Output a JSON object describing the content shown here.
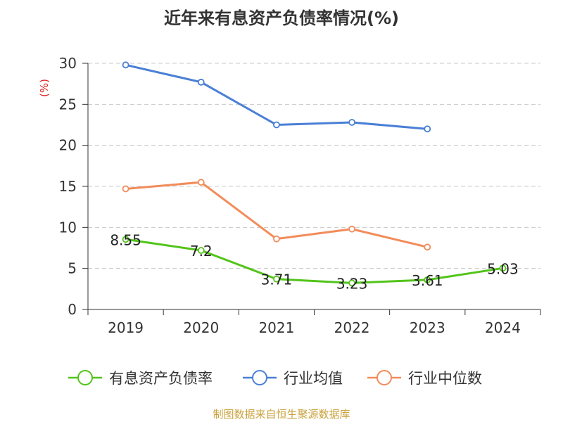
{
  "title": "近年来有息资产负债率情况(%)",
  "footer": "制图数据来自恒生聚源数据库",
  "chart_data": {
    "type": "line",
    "categories": [
      "2019",
      "2020",
      "2021",
      "2022",
      "2023",
      "2024"
    ],
    "ylabel": "(%)",
    "ylim": [
      0,
      30
    ],
    "yticks": [
      0,
      5,
      10,
      15,
      20,
      25,
      30
    ],
    "grid": true,
    "legend_position": "bottom",
    "series": [
      {
        "name": "有息资产负债率",
        "color": "#52c41a",
        "values": [
          8.55,
          7.2,
          3.71,
          3.23,
          3.61,
          5.03
        ],
        "labels": [
          "8.55",
          "7.2",
          "3.71",
          "3.23",
          "3.61",
          "5.03"
        ]
      },
      {
        "name": "行业均值",
        "color": "#4a7fd6",
        "values": [
          29.8,
          27.7,
          22.5,
          22.8,
          22.0,
          null
        ]
      },
      {
        "name": "行业中位数",
        "color": "#f28c5a",
        "values": [
          14.7,
          15.5,
          8.6,
          9.8,
          7.6,
          null
        ]
      }
    ]
  }
}
